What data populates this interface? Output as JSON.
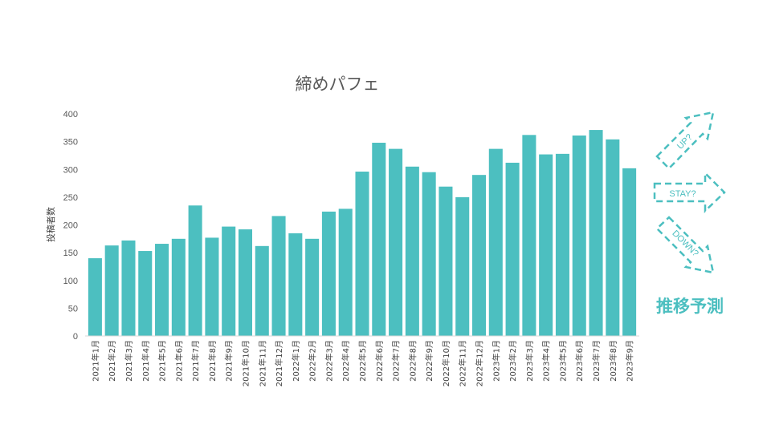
{
  "colors": {
    "bar": "#4cbfc0",
    "accent": "#4cbfc0",
    "axis_text": "#595959"
  },
  "chart_data": {
    "type": "bar",
    "title": "締めパフェ",
    "ylabel": "投稿者数",
    "xlabel": "",
    "ylim": [
      0,
      400
    ],
    "yticks": [
      0,
      50,
      100,
      150,
      200,
      250,
      300,
      350,
      400
    ],
    "grid": false,
    "legend": "none",
    "categories": [
      "2021年1月",
      "2021年2月",
      "2021年3月",
      "2021年4月",
      "2021年5月",
      "2021年6月",
      "2021年7月",
      "2021年8月",
      "2021年9月",
      "2021年10月",
      "2021年11月",
      "2021年12月",
      "2022年1月",
      "2022年2月",
      "2022年3月",
      "2022年4月",
      "2022年5月",
      "2022年6月",
      "2022年7月",
      "2022年8月",
      "2022年9月",
      "2022年10月",
      "2022年11月",
      "2022年12月",
      "2023年1月",
      "2023年2月",
      "2023年3月",
      "2023年4月",
      "2023年5月",
      "2023年6月",
      "2023年7月",
      "2023年8月",
      "2023年9月"
    ],
    "values": [
      140,
      163,
      172,
      153,
      166,
      175,
      235,
      177,
      197,
      192,
      162,
      216,
      185,
      175,
      224,
      229,
      296,
      348,
      337,
      305,
      295,
      269,
      250,
      290,
      337,
      312,
      362,
      327,
      328,
      361,
      371,
      354,
      302
    ]
  },
  "side_panel": {
    "up_label": "UP?",
    "stay_label": "STAY?",
    "down_label": "DOWN?",
    "caption": "推移予測"
  }
}
